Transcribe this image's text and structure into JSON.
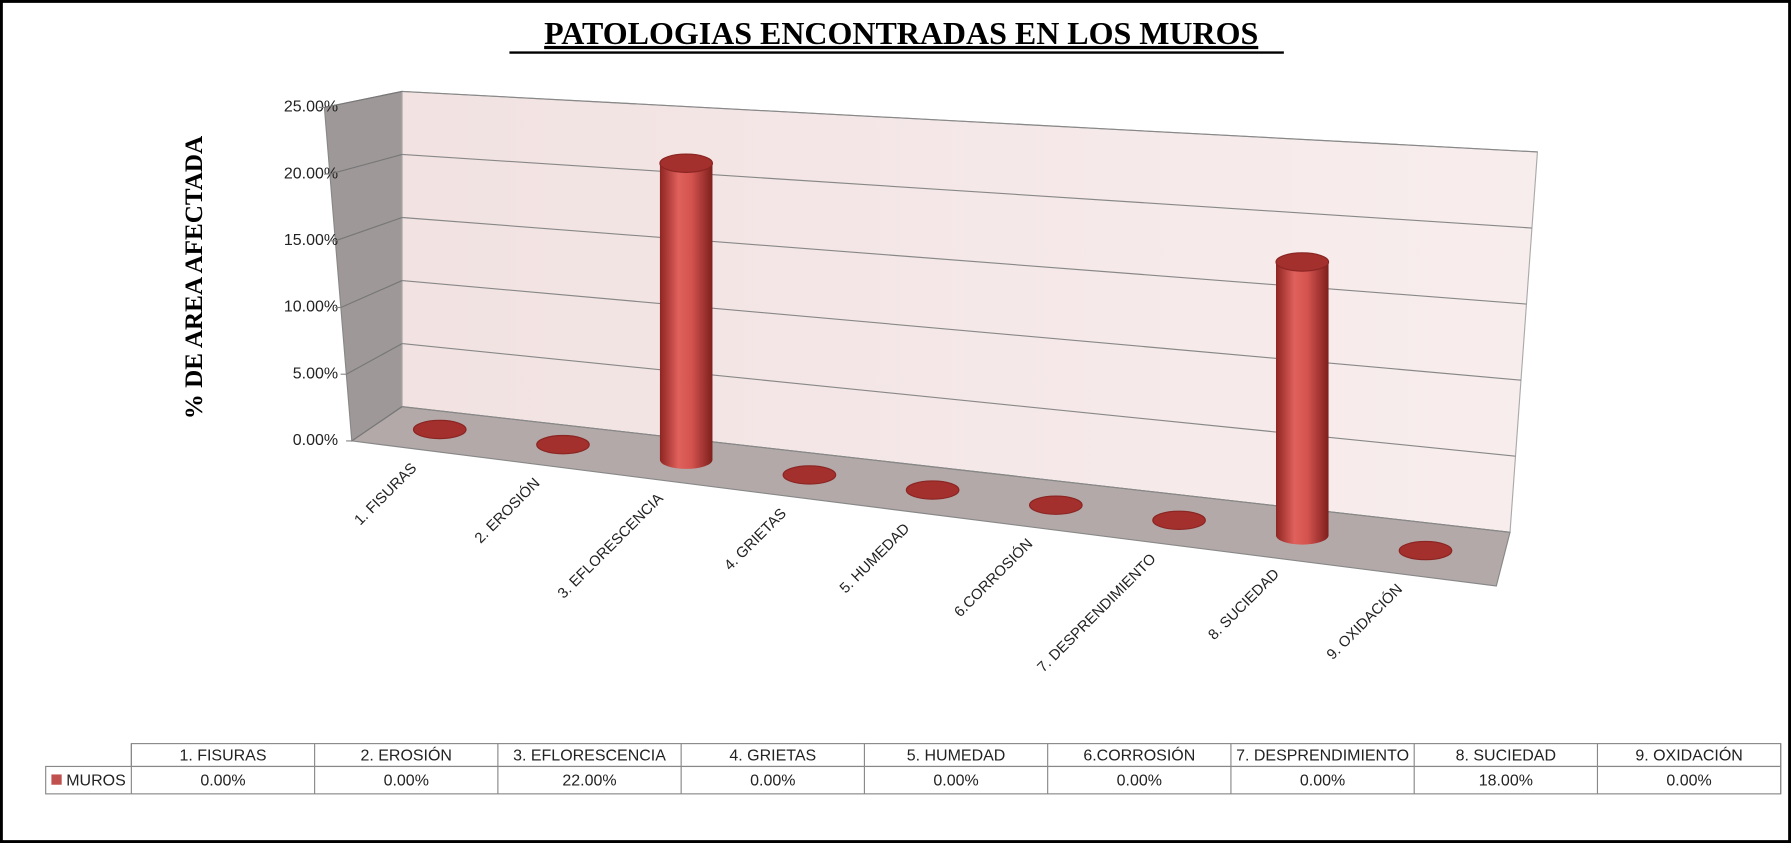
{
  "chart_data": {
    "type": "bar",
    "title": "PATOLOGIAS  ENCONTRADAS EN LOS MUROS",
    "y_label": "% DE AREA  AFECTADA",
    "categories": [
      "1. FISURAS",
      "2. EROSIÓN",
      "3. EFLORESCENCIA",
      "4. GRIETAS",
      "5. HUMEDAD",
      "6.CORROSIÓN",
      "7. DESPRENDIMIENTO",
      "8. SUCIEDAD",
      "9. OXIDACIÓN"
    ],
    "series": [
      {
        "name": "MUROS",
        "color": "#c0504d",
        "values": [
          0,
          0,
          22,
          0,
          0,
          0,
          0,
          18,
          0
        ],
        "value_labels": [
          "0.00%",
          "0.00%",
          "22.00%",
          "0.00%",
          "0.00%",
          "0.00%",
          "0.00%",
          "18.00%",
          "0.00%"
        ]
      }
    ],
    "ylim": [
      0,
      25
    ],
    "yticks": [
      {
        "value": 0,
        "label": "0.00%"
      },
      {
        "value": 5,
        "label": "5.00%"
      },
      {
        "value": 10,
        "label": "10.00%"
      },
      {
        "value": 15,
        "label": "15.00%"
      },
      {
        "value": 20,
        "label": "20.00%"
      },
      {
        "value": 25,
        "label": "25.00%"
      }
    ],
    "grid": true,
    "data_table": true
  }
}
